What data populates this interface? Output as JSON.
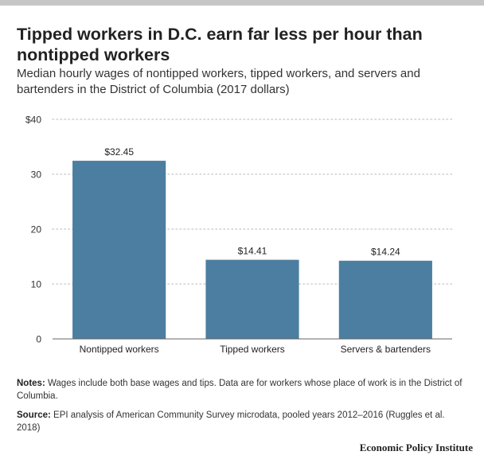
{
  "title": "Tipped workers in D.C. earn far less per hour than nontipped workers",
  "subtitle": "Median hourly wages of nontipped workers, tipped workers, and servers and bartenders in the District of Columbia (2017 dollars)",
  "notes": {
    "label": "Notes:",
    "text": "Wages include both base wages and tips. Data are for workers whose place of work is in the District of Columbia."
  },
  "source": {
    "label": "Source:",
    "text": "EPI analysis of American Community Survey microdata, pooled years 2012–2016 (Ruggles et al. 2018)"
  },
  "brand": "Economic Policy Institute",
  "chart_data": {
    "type": "bar",
    "categories": [
      "Nontipped workers",
      "Tipped workers",
      "Servers & bartenders"
    ],
    "values": [
      32.45,
      14.41,
      14.24
    ],
    "data_labels": [
      "$32.45",
      "$14.41",
      "$14.24"
    ],
    "ylim": [
      0,
      40
    ],
    "yticks": [
      0,
      10,
      20,
      30,
      40
    ],
    "ytick_labels": [
      "0",
      "10",
      "20",
      "30",
      "$40"
    ],
    "grid": true,
    "bar_color": "#4b7ea0",
    "grid_color": "#cfcfcf"
  }
}
